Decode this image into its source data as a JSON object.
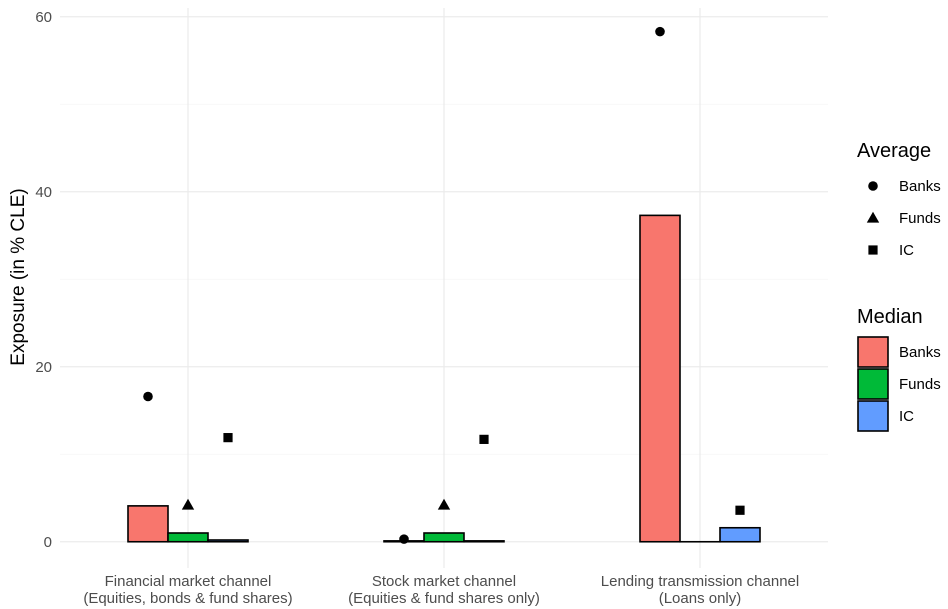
{
  "chart_data": {
    "type": "bar",
    "categories": [
      [
        "Financial market channel",
        "(Equities, bonds & fund shares)"
      ],
      [
        "Stock market channel",
        "(Equities & fund shares only)"
      ],
      [
        "Lending transmission channel",
        "(Loans only)"
      ]
    ],
    "ylabel": "Exposure (in % CLE)",
    "ylim": [
      -3,
      61
    ],
    "yticks": [
      0,
      20,
      40,
      60
    ],
    "grid": true,
    "legend_placement": "right",
    "median_series": [
      {
        "name": "Banks",
        "color": "#F8766D",
        "values": [
          4.1,
          0.1,
          37.3
        ]
      },
      {
        "name": "Funds",
        "color": "#00BA38",
        "values": [
          1.0,
          1.0,
          0.0
        ]
      },
      {
        "name": "IC",
        "color": "#619CFF",
        "values": [
          0.2,
          0.1,
          1.6
        ]
      }
    ],
    "average_series": [
      {
        "name": "Banks",
        "marker": "circle",
        "values": [
          16.6,
          0.3,
          58.3
        ]
      },
      {
        "name": "Funds",
        "marker": "triangle",
        "values": [
          4.2,
          4.2,
          null
        ]
      },
      {
        "name": "IC",
        "marker": "square",
        "values": [
          11.9,
          11.7,
          3.6
        ]
      }
    ],
    "legends": {
      "average": {
        "title": "Average",
        "items": [
          "Banks",
          "Funds",
          "IC"
        ]
      },
      "median": {
        "title": "Median",
        "items": [
          "Banks",
          "Funds",
          "IC"
        ]
      }
    }
  }
}
